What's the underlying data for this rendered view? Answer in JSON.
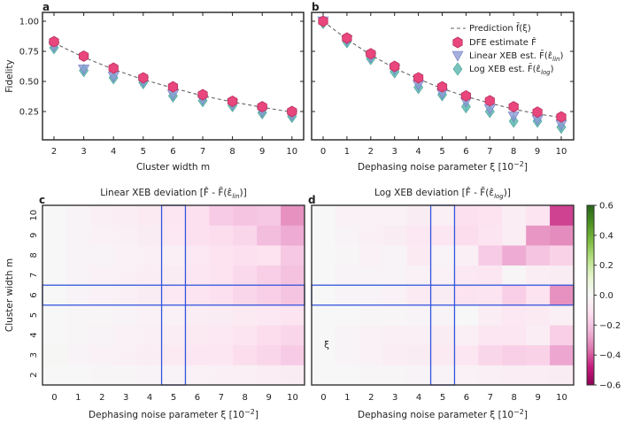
{
  "chart_data": [
    {
      "panel": "a",
      "type": "scatter",
      "xlabel": "Cluster width m",
      "ylabel": "Fidelity",
      "x": [
        2,
        3,
        4,
        5,
        6,
        7,
        8,
        9,
        10
      ],
      "xlim": [
        1.6,
        10.4
      ],
      "ylim": [
        0.02,
        1.07
      ],
      "yticks": [
        "0.25",
        "0.50",
        "0.75",
        "1.00"
      ],
      "series": [
        {
          "name": "Prediction",
          "style": "dashed-line",
          "values": [
            0.82,
            0.7,
            0.6,
            0.515,
            0.445,
            0.38,
            0.33,
            0.285,
            0.245
          ]
        },
        {
          "name": "DFE estimate",
          "style": "hexagon",
          "values": [
            0.83,
            0.71,
            0.61,
            0.53,
            0.455,
            0.39,
            0.335,
            0.29,
            0.25
          ]
        },
        {
          "name": "Linear XEB est.",
          "style": "triangle-down",
          "values": [
            0.79,
            0.6,
            0.54,
            0.5,
            0.39,
            0.35,
            0.31,
            0.25,
            0.22
          ]
        },
        {
          "name": "Log XEB est.",
          "style": "diamond",
          "values": [
            0.78,
            0.59,
            0.53,
            0.49,
            0.38,
            0.34,
            0.3,
            0.24,
            0.21
          ]
        }
      ]
    },
    {
      "panel": "b",
      "type": "scatter",
      "xlabel": "Dephasing noise parameter ξ [10",
      "xlabel_exp": "−2",
      "xlabel_end": "]",
      "x": [
        0,
        1,
        2,
        3,
        4,
        5,
        6,
        7,
        8,
        9,
        10
      ],
      "xlim": [
        -0.6,
        10.6
      ],
      "ylim": [
        0.02,
        1.07
      ],
      "legend": {
        "placement": "top-right",
        "entries": [
          {
            "text": "Prediction f̄(ξ)"
          },
          {
            "text": "DFE estimate F̂"
          },
          {
            "text": "Linear XEB est. F̄(ε̂",
            "sub": "lin",
            "end": ")"
          },
          {
            "text": "Log XEB est. F̄(ε̂",
            "sub": "log",
            "end": ")"
          }
        ]
      },
      "series": [
        {
          "name": "Prediction",
          "style": "dashed-line",
          "values": [
            1.0,
            0.85,
            0.72,
            0.61,
            0.52,
            0.44,
            0.375,
            0.32,
            0.27,
            0.23,
            0.2
          ]
        },
        {
          "name": "DFE estimate",
          "style": "hexagon",
          "values": [
            1.0,
            0.86,
            0.73,
            0.625,
            0.53,
            0.455,
            0.38,
            0.34,
            0.29,
            0.245,
            0.205
          ]
        },
        {
          "name": "Linear XEB est.",
          "style": "triangle-down",
          "values": [
            1.0,
            0.84,
            0.7,
            0.6,
            0.47,
            0.4,
            0.33,
            0.27,
            0.21,
            0.18,
            0.14
          ]
        },
        {
          "name": "Log XEB est.",
          "style": "diamond",
          "values": [
            0.99,
            0.83,
            0.69,
            0.58,
            0.45,
            0.39,
            0.29,
            0.25,
            0.17,
            0.17,
            0.12
          ]
        }
      ]
    },
    {
      "panel": "c",
      "type": "heatmap",
      "title": "Linear XEB deviation [F̂ - F̄(ε̂",
      "title_sub": "lin",
      "title_end": ")]",
      "xlabel": "Dephasing noise parameter ξ [10",
      "xlabel_exp": "−2",
      "xlabel_end": "]",
      "ylabel": "Cluster width m",
      "x": [
        0,
        1,
        2,
        3,
        4,
        5,
        6,
        7,
        8,
        9,
        10
      ],
      "y": [
        2,
        3,
        4,
        5,
        6,
        7,
        8,
        9,
        10
      ],
      "highlight": {
        "x": 5,
        "y": 6
      },
      "values": [
        [
          0,
          0,
          -0.01,
          -0.01,
          -0.02,
          -0.02,
          -0.03,
          -0.04,
          -0.04,
          -0.05,
          -0.06
        ],
        [
          0.01,
          -0.02,
          -0.03,
          -0.04,
          -0.05,
          -0.07,
          -0.09,
          -0.09,
          -0.13,
          -0.15,
          -0.18
        ],
        [
          0,
          -0.01,
          -0.02,
          -0.03,
          -0.04,
          -0.05,
          -0.07,
          -0.08,
          -0.1,
          -0.13,
          -0.15
        ],
        [
          0,
          -0.01,
          -0.01,
          -0.02,
          -0.03,
          -0.03,
          -0.05,
          -0.06,
          -0.07,
          -0.08,
          -0.1
        ],
        [
          0,
          -0.02,
          -0.03,
          -0.04,
          -0.06,
          -0.08,
          -0.1,
          -0.12,
          -0.15,
          -0.17,
          -0.2
        ],
        [
          0,
          -0.02,
          -0.03,
          -0.04,
          -0.05,
          -0.06,
          -0.09,
          -0.11,
          -0.14,
          -0.17,
          -0.21
        ],
        [
          0,
          -0.02,
          -0.02,
          -0.03,
          -0.04,
          -0.04,
          -0.08,
          -0.11,
          -0.12,
          -0.11,
          -0.19
        ],
        [
          0,
          -0.02,
          -0.03,
          -0.04,
          -0.06,
          -0.08,
          -0.12,
          -0.13,
          -0.15,
          -0.22,
          -0.26
        ],
        [
          0,
          -0.02,
          -0.04,
          -0.05,
          -0.07,
          -0.09,
          -0.12,
          -0.18,
          -0.2,
          -0.19,
          -0.31
        ]
      ]
    },
    {
      "panel": "d",
      "type": "heatmap",
      "title": "Log XEB deviation [F̂ - F̄(ε̂",
      "title_sub": "log",
      "title_end": ")]",
      "xlabel": "Dephasing noise parameter ξ [10",
      "xlabel_exp": "−2",
      "xlabel_end": "]",
      "annotation": "ξ",
      "x": [
        0,
        1,
        2,
        3,
        4,
        5,
        6,
        7,
        8,
        9,
        10
      ],
      "y": [
        2,
        3,
        4,
        5,
        6,
        7,
        8,
        9,
        10
      ],
      "highlight": {
        "x": 5,
        "y": 6
      },
      "values": [
        [
          0,
          0,
          -0.01,
          -0.01,
          -0.02,
          -0.02,
          -0.03,
          -0.04,
          -0.05,
          -0.05,
          -0.06
        ],
        [
          0,
          -0.02,
          -0.03,
          -0.05,
          -0.06,
          -0.07,
          -0.09,
          -0.15,
          -0.17,
          -0.16,
          -0.27
        ],
        [
          0,
          -0.02,
          -0.03,
          -0.04,
          -0.04,
          -0.06,
          -0.04,
          -0.09,
          -0.09,
          -0.05,
          -0.17
        ],
        [
          0,
          0,
          -0.01,
          -0.01,
          -0.02,
          -0.02,
          0,
          -0.05,
          -0.08,
          -0.07,
          -0.04
        ],
        [
          0,
          -0.02,
          -0.02,
          -0.03,
          -0.07,
          -0.06,
          -0.11,
          -0.1,
          -0.17,
          -0.11,
          -0.31
        ],
        [
          0,
          -0.02,
          -0.02,
          -0.02,
          -0.03,
          -0.03,
          -0.08,
          -0.09,
          -0.01,
          -0.05,
          -0.06
        ],
        [
          0,
          -0.01,
          -0.03,
          -0.02,
          -0.07,
          -0.02,
          -0.04,
          -0.18,
          -0.26,
          -0.2,
          -0.16
        ],
        [
          0,
          -0.02,
          -0.04,
          -0.06,
          -0.08,
          -0.09,
          -0.13,
          -0.1,
          -0.05,
          -0.3,
          -0.32
        ],
        [
          0,
          -0.03,
          -0.03,
          -0.03,
          -0.06,
          -0.04,
          -0.12,
          -0.11,
          -0.05,
          -0.1,
          -0.43
        ]
      ]
    }
  ],
  "colorbar": {
    "range": [
      -0.6,
      0.6
    ],
    "ticks": [
      "0.6",
      "0.4",
      "0.2",
      "0.0",
      "−0.2",
      "−0.4",
      "−0.6"
    ],
    "colormap": [
      "#8e0152",
      "#c51b7d",
      "#de77ae",
      "#f1b6da",
      "#fde0ef",
      "#f7f7f7",
      "#e6f5d0",
      "#b8e186",
      "#7fbc41",
      "#4d9221",
      "#276419"
    ]
  },
  "panel_labels": [
    "a",
    "b",
    "c",
    "d"
  ],
  "colors": {
    "dfe": "#e8467c",
    "dfe_edge": "#b8325f",
    "lin": "#8f9bd6",
    "log": "#56b7ac",
    "prediction": "#666666",
    "highlight": "#3355dd"
  }
}
